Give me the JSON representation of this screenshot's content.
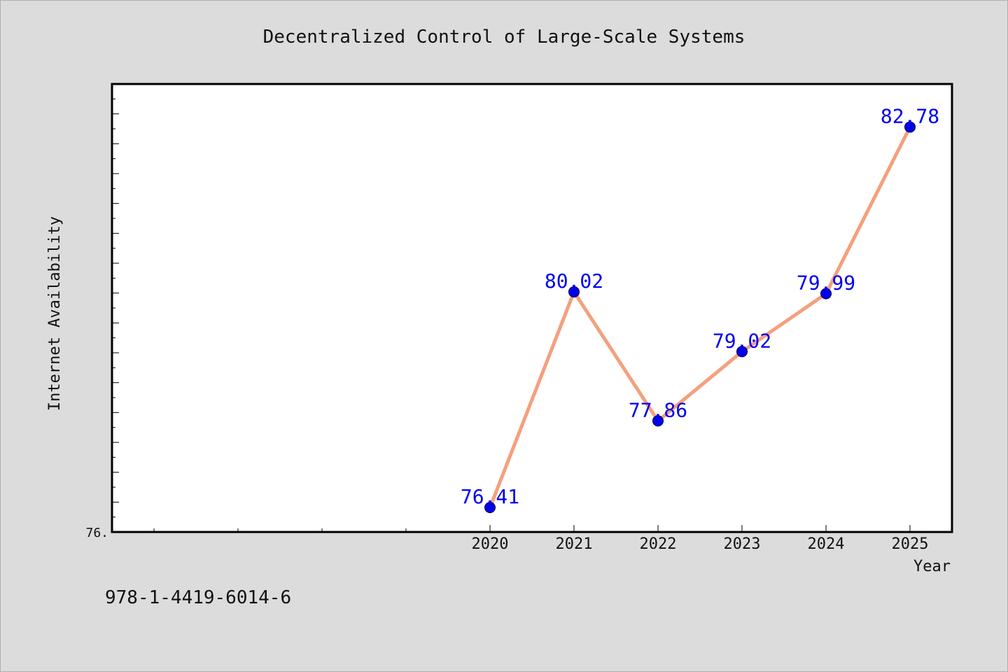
{
  "chart_data": {
    "type": "line",
    "title": "Decentralized Control of Large-Scale Systems",
    "xlabel": "Year",
    "ylabel": "Internet Availability",
    "x": [
      2020,
      2021,
      2022,
      2023,
      2024,
      2025
    ],
    "x_tick_labels": [
      "2020",
      "2021",
      "2022",
      "2023",
      "2024",
      "2025"
    ],
    "xlim": [
      2015.5,
      2025.5
    ],
    "series": [
      {
        "values": [
          76.41,
          80.02,
          77.86,
          79.02,
          79.99,
          82.78
        ],
        "data_labels": [
          "76.41",
          "80.02",
          "77.86",
          "79.02",
          "79.99",
          "82.78"
        ]
      }
    ],
    "ylim": [
      76.0,
      83.5
    ],
    "y_tick_labels": [
      "76."
    ],
    "grid": false,
    "line_color": "#f4a07e",
    "marker_color": "#0000ee",
    "label_color": "#0000ee"
  },
  "footer_text": "978-1-4419-6014-6"
}
